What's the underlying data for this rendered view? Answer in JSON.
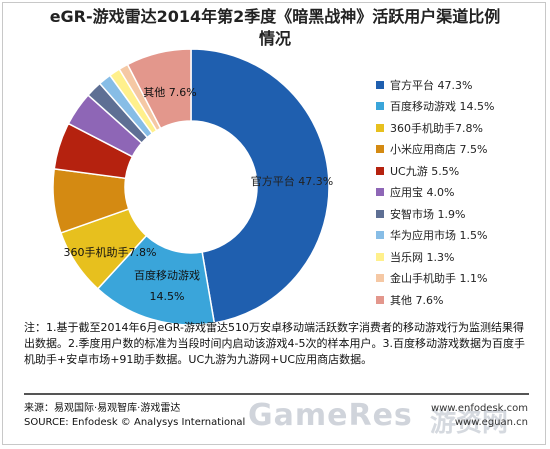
{
  "title": {
    "line1": "eGR-游戏雷达2014年第2季度《暗黑战神》活跃用户渠道比例",
    "line2": "情况"
  },
  "chart_data": {
    "type": "pie",
    "style": "donut",
    "title": "eGR-游戏雷达2014年第2季度《暗黑战神》活跃用户渠道比例情况",
    "legend_position": "right",
    "series": [
      {
        "name": "官方平台",
        "value": 47.3,
        "label": "官方平台 47.3%",
        "color": "#1F5FAF"
      },
      {
        "name": "百度移动游戏",
        "value": 14.5,
        "label": "百度移动游戏 14.5%",
        "color": "#3AA5DA"
      },
      {
        "name": "360手机助手",
        "value": 7.8,
        "label": "360手机助手7.8%",
        "color": "#E7C01E"
      },
      {
        "name": "小米应用商店",
        "value": 7.5,
        "label": "小米应用商店 7.5%",
        "color": "#D48A12"
      },
      {
        "name": "UC九游",
        "value": 5.5,
        "label": "UC九游 5.5%",
        "color": "#B5220F"
      },
      {
        "name": "应用宝",
        "value": 4.0,
        "label": "应用宝 4.0%",
        "color": "#8E66B6"
      },
      {
        "name": "安智市场",
        "value": 1.9,
        "label": "安智市场 1.9%",
        "color": "#5E6F94"
      },
      {
        "name": "华为应用市场",
        "value": 1.5,
        "label": "华为应用市场 1.5%",
        "color": "#87BDE6"
      },
      {
        "name": "当乐网",
        "value": 1.3,
        "label": "当乐网 1.3%",
        "color": "#FFF08C"
      },
      {
        "name": "金山手机助手",
        "value": 1.1,
        "label": "金山手机助手 1.1%",
        "color": "#F5C8A4"
      },
      {
        "name": "其他",
        "value": 7.6,
        "label": "其他 7.6%",
        "color": "#E3978C"
      }
    ],
    "slice_labels": {
      "official": "官方平台 47.3%",
      "baidu_name": "百度移动游戏",
      "baidu_value": "14.5%",
      "c360": "360手机助手7.8%",
      "other": "其他 7.6%"
    }
  },
  "note": "注：1.基于截至2014年6月eGR-游戏雷达510万安卓移动端活跃数字消费者的移动游戏行为监测结果得出数据。2.季度用户数的标准为当段时间内启动该游戏4-5次的样本用户。3.百度移动游戏数据为百度手机助手+安卓市场+91助手数据。UC九游为九游网+UC应用商店数据。",
  "source": {
    "line1": "来源：易观国际·易观智库·游戏雷达",
    "line2": "SOURCE: Enfodesk © Analysys International"
  },
  "sites": {
    "line1": "www.enfodesk.com",
    "line2": "www.eguan.cn"
  },
  "watermark": {
    "latin": "GameRes",
    "cn": "游资网"
  }
}
